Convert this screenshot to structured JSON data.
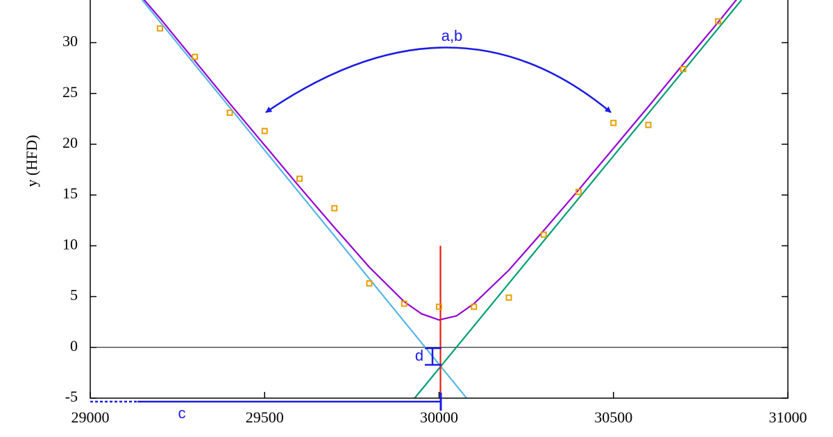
{
  "chart_data": {
    "type": "line",
    "ylabel": "y (HFD)",
    "xlim": [
      29000,
      31000
    ],
    "ylim": [
      -5,
      34.2
    ],
    "xticks": [
      29000,
      29500,
      30000,
      30500,
      31000
    ],
    "yticks": [
      -5,
      0,
      5,
      10,
      15,
      20,
      25,
      30
    ],
    "zero_line": true,
    "annotations": [
      "a,b",
      "c",
      "d"
    ],
    "series": [
      {
        "style": "line",
        "color": "#56b4e9",
        "x": [
          29149,
          30079
        ],
        "values": [
          34.2,
          -5
        ]
      },
      {
        "style": "line",
        "color": "#009e73",
        "x": [
          29930,
          30867
        ],
        "values": [
          -5,
          34.2
        ]
      },
      {
        "style": "line",
        "color": "#9400d3",
        "x": [
          29150,
          29200,
          29300,
          29400,
          29500,
          29600,
          29700,
          29800,
          29900,
          29950,
          30000,
          30050,
          30100,
          30200,
          30300,
          30400,
          30500,
          30600,
          30700,
          30800,
          30880
        ],
        "values": [
          34.4,
          32.4,
          28.2,
          24.0,
          19.9,
          15.8,
          11.8,
          7.9,
          4.5,
          3.3,
          2.7,
          3.1,
          4.3,
          7.6,
          11.5,
          15.5,
          19.6,
          23.7,
          27.9,
          32.0,
          35.4
        ]
      },
      {
        "style": "line",
        "color": "#e51e10",
        "x": [
          30004,
          30004
        ],
        "values": [
          -5,
          10
        ]
      },
      {
        "style": "points",
        "color": "#e69f00",
        "x": [
          29200,
          29300,
          29400,
          29500,
          29600,
          29700,
          29800,
          29900,
          30000,
          30100,
          30200,
          30300,
          30400,
          30500,
          30600,
          30700,
          30800
        ],
        "values": [
          31.4,
          28.6,
          23.1,
          21.3,
          16.6,
          13.7,
          6.3,
          4.3,
          4.0,
          4.0,
          4.9,
          11.1,
          15.3,
          22.1,
          21.9,
          27.4,
          32.1
        ]
      }
    ]
  }
}
